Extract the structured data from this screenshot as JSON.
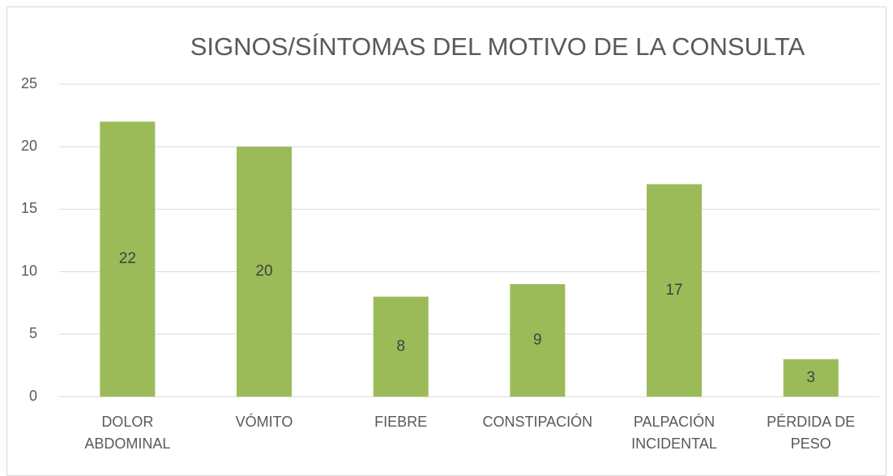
{
  "chart_data": {
    "type": "bar",
    "title": "SIGNOS/SÍNTOMAS DEL MOTIVO DE LA CONSULTA",
    "categories": [
      "DOLOR ABDOMINAL",
      "VÓMITO",
      "FIEBRE",
      "CONSTIPACIÓN",
      "PALPACIÓN INCIDENTAL",
      "PÉRDIDA DE PESO"
    ],
    "values": [
      22,
      20,
      8,
      9,
      17,
      3
    ],
    "color": "#9bbb59",
    "ylim": [
      0,
      25
    ],
    "yticks": [
      0,
      5,
      10,
      15,
      20,
      25
    ],
    "grid": true
  }
}
